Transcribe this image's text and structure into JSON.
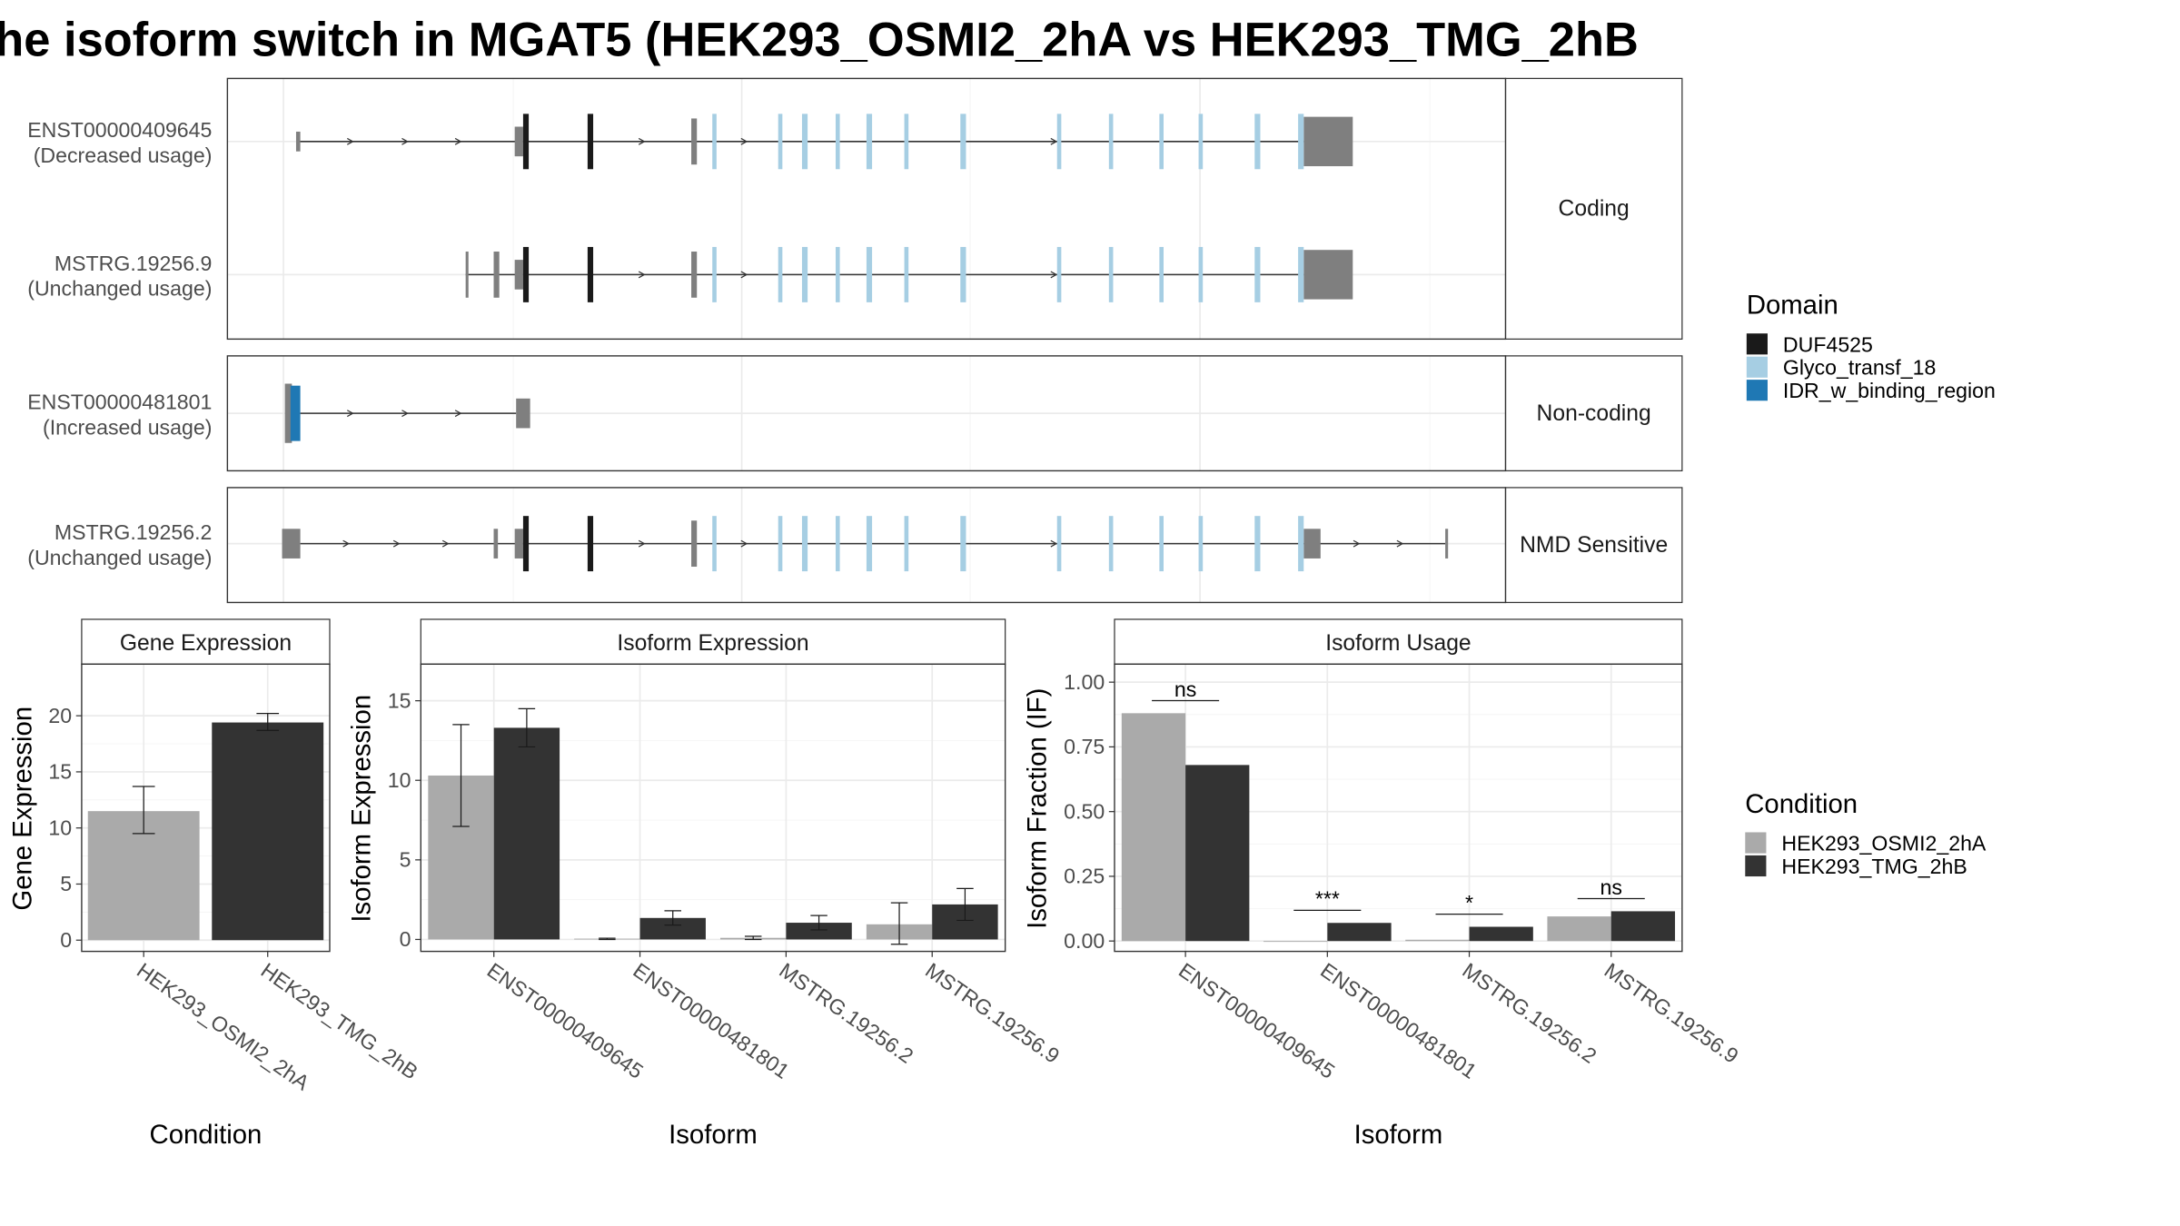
{
  "title": "he isoform switch in MGAT5 (HEK293_OSMI2_2hA vs HEK293_TMG_2hB",
  "colors": {
    "duf": "#1a1a1a",
    "glyco": "#a6cee3",
    "idr": "#1f78b4",
    "exon": "#7f7f7f",
    "cond_a": "#aaaaaa",
    "cond_b": "#333333",
    "grid": "#ebebeb",
    "panel_border": "#333333"
  },
  "structure": {
    "groups": [
      {
        "label": "Coding"
      },
      {
        "label": "Non-coding"
      },
      {
        "label": "NMD Sensitive"
      }
    ],
    "transcripts": [
      {
        "id_label": "ENST00000409645",
        "usage_label": "(Decreased usage)",
        "group": 0,
        "intron": [
          212,
          930
        ],
        "exons": [
          [
            211,
            214,
            0.3
          ],
          [
            367,
            373,
            0.45
          ],
          [
            493,
            497,
            0.7
          ],
          [
            930,
            965,
            0.75
          ]
        ],
        "domains": [
          [
            373,
            377,
            "duf"
          ],
          [
            419,
            423,
            "duf"
          ],
          [
            508,
            511,
            "glyco"
          ],
          [
            555,
            558,
            "glyco"
          ],
          [
            572,
            576,
            "glyco"
          ],
          [
            596,
            599,
            "glyco"
          ],
          [
            618,
            622,
            "glyco"
          ],
          [
            645,
            648,
            "glyco"
          ],
          [
            685,
            689,
            "glyco"
          ],
          [
            754,
            757,
            "glyco"
          ],
          [
            791,
            794,
            "glyco"
          ],
          [
            827,
            830,
            "glyco"
          ],
          [
            855,
            858,
            "glyco"
          ],
          [
            895,
            899,
            "glyco"
          ],
          [
            926,
            930,
            "glyco"
          ]
        ],
        "arrows": [
          250,
          289,
          327,
          458,
          531,
          752
        ]
      },
      {
        "id_label": "MSTRG.19256.9",
        "usage_label": "(Unchanged usage)",
        "group": 0,
        "intron": [
          332,
          930
        ],
        "exons": [
          [
            332,
            334,
            0.7
          ],
          [
            352,
            356,
            0.7
          ],
          [
            367,
            373,
            0.45
          ],
          [
            493,
            497,
            0.7
          ],
          [
            930,
            965,
            0.75
          ]
        ],
        "domains": [
          [
            373,
            377,
            "duf"
          ],
          [
            419,
            423,
            "duf"
          ],
          [
            508,
            511,
            "glyco"
          ],
          [
            555,
            558,
            "glyco"
          ],
          [
            572,
            576,
            "glyco"
          ],
          [
            596,
            599,
            "glyco"
          ],
          [
            618,
            622,
            "glyco"
          ],
          [
            645,
            648,
            "glyco"
          ],
          [
            685,
            689,
            "glyco"
          ],
          [
            754,
            757,
            "glyco"
          ],
          [
            791,
            794,
            "glyco"
          ],
          [
            827,
            830,
            "glyco"
          ],
          [
            855,
            858,
            "glyco"
          ],
          [
            895,
            899,
            "glyco"
          ],
          [
            926,
            930,
            "glyco"
          ]
        ],
        "arrows": [
          458,
          531,
          752
        ]
      },
      {
        "id_label": "ENST00000481801",
        "usage_label": "(Increased usage)",
        "group": 1,
        "intron": [
          214,
          368
        ],
        "exons": [
          [
            203,
            208,
            0.9
          ],
          [
            368,
            378,
            0.45
          ]
        ],
        "domains": [
          [
            207,
            214,
            "idr"
          ]
        ],
        "arrows": [
          250,
          289,
          327
        ]
      },
      {
        "id_label": "MSTRG.19256.2",
        "usage_label": "(Unchanged usage)",
        "group": 2,
        "intron": [
          214,
          1031
        ],
        "exons": [
          [
            201,
            214,
            0.45
          ],
          [
            352,
            355,
            0.45
          ],
          [
            367,
            373,
            0.45
          ],
          [
            493,
            497,
            0.7
          ],
          [
            930,
            942,
            0.45
          ],
          [
            1031,
            1033,
            0.45
          ]
        ],
        "domains": [
          [
            373,
            377,
            "duf"
          ],
          [
            419,
            423,
            "duf"
          ],
          [
            508,
            511,
            "glyco"
          ],
          [
            555,
            558,
            "glyco"
          ],
          [
            572,
            576,
            "glyco"
          ],
          [
            596,
            599,
            "glyco"
          ],
          [
            618,
            622,
            "glyco"
          ],
          [
            645,
            648,
            "glyco"
          ],
          [
            685,
            689,
            "glyco"
          ],
          [
            754,
            757,
            "glyco"
          ],
          [
            791,
            794,
            "glyco"
          ],
          [
            827,
            830,
            "glyco"
          ],
          [
            855,
            858,
            "glyco"
          ],
          [
            895,
            899,
            "glyco"
          ],
          [
            926,
            930,
            "glyco"
          ]
        ],
        "arrows": [
          247,
          283,
          318,
          458,
          531,
          752,
          968,
          999
        ]
      }
    ]
  },
  "chart_data": [
    {
      "type": "bar",
      "title": "Gene Expression",
      "xlabel": "Condition",
      "ylabel": "Gene Expression",
      "categories": [
        "HEK293_OSMI2_2hA",
        "HEK293_TMG_2hB"
      ],
      "values": [
        11.5,
        19.4
      ],
      "errors": [
        [
          9.5,
          13.7
        ],
        [
          18.7,
          20.2
        ]
      ],
      "yticks": [
        0,
        5,
        10,
        15,
        20
      ],
      "ylim": [
        -1.0,
        24.6
      ]
    },
    {
      "type": "bar",
      "title": "Isoform Expression",
      "xlabel": "Isoform",
      "ylabel": "Isoform Expression",
      "categories": [
        "ENST00000409645",
        "ENST00000481801",
        "MSTRG.19256.2",
        "MSTRG.19256.9"
      ],
      "series": [
        {
          "name": "HEK293_OSMI2_2hA",
          "values": [
            10.3,
            0.05,
            0.1,
            0.95
          ],
          "errors": [
            [
              7.1,
              13.5
            ],
            [
              0.0,
              0.08
            ],
            [
              0.0,
              0.2
            ],
            [
              -0.3,
              2.3
            ]
          ]
        },
        {
          "name": "HEK293_TMG_2hB",
          "values": [
            13.3,
            1.35,
            1.05,
            2.2
          ],
          "errors": [
            [
              12.1,
              14.5
            ],
            [
              0.9,
              1.8
            ],
            [
              0.6,
              1.5
            ],
            [
              1.2,
              3.2
            ]
          ]
        }
      ],
      "yticks": [
        0,
        5,
        10,
        15
      ],
      "ylim": [
        -0.75,
        17.3
      ]
    },
    {
      "type": "bar",
      "title": "Isoform Usage",
      "xlabel": "Isoform",
      "ylabel": "Isoform Fraction (IF)",
      "categories": [
        "ENST00000409645",
        "ENST00000481801",
        "MSTRG.19256.2",
        "MSTRG.19256.9"
      ],
      "series": [
        {
          "name": "HEK293_OSMI2_2hA",
          "values": [
            0.88,
            0.0,
            0.005,
            0.095
          ]
        },
        {
          "name": "HEK293_TMG_2hB",
          "values": [
            0.68,
            0.07,
            0.055,
            0.115
          ]
        }
      ],
      "significance": [
        "ns",
        "***",
        "*",
        "ns"
      ],
      "yticks": [
        "0.00",
        "0.25",
        "0.50",
        "0.75",
        "1.00"
      ],
      "ylim": [
        -0.04,
        1.0696
      ]
    }
  ],
  "legends": {
    "domain": {
      "title": "Domain",
      "items": [
        {
          "label": "DUF4525",
          "color": "#1a1a1a"
        },
        {
          "label": "Glyco_transf_18",
          "color": "#a6cee3"
        },
        {
          "label": "IDR_w_binding_region",
          "color": "#1f78b4"
        }
      ]
    },
    "condition": {
      "title": "Condition",
      "items": [
        {
          "label": "HEK293_OSMI2_2hA",
          "color": "#aaaaaa"
        },
        {
          "label": "HEK293_TMG_2hB",
          "color": "#333333"
        }
      ]
    }
  }
}
